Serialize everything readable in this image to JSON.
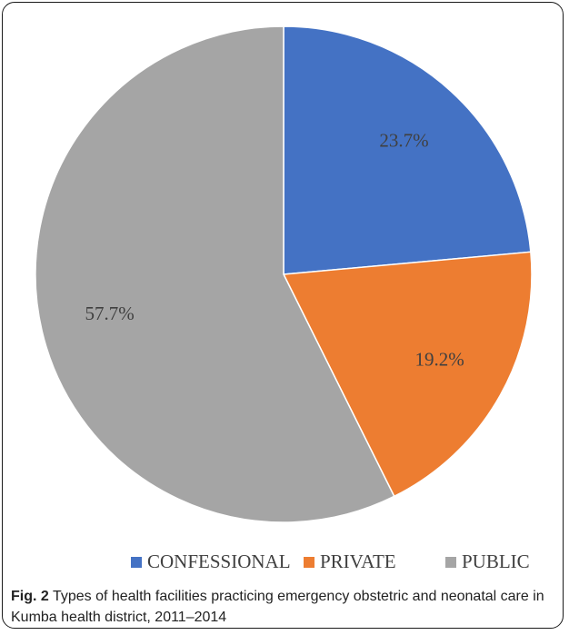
{
  "chart_data": {
    "type": "pie",
    "slices": [
      {
        "label": "CONFESSIONAL",
        "value": 23.7,
        "display": "23.7%",
        "color": "#4472C4"
      },
      {
        "label": "PRIVATE",
        "value": 19.2,
        "display": "19.2%",
        "color": "#ED7D31"
      },
      {
        "label": "PUBLIC",
        "value": 57.7,
        "display": "57.7%",
        "color": "#A5A5A5"
      }
    ],
    "legend_position": "bottom",
    "start_angle": "top, clockwise"
  },
  "caption": {
    "label": "Fig. 2",
    "text": " Types of health facilities practicing emergency obstetric and neonatal care in Kumba health district, 2011–2014"
  }
}
